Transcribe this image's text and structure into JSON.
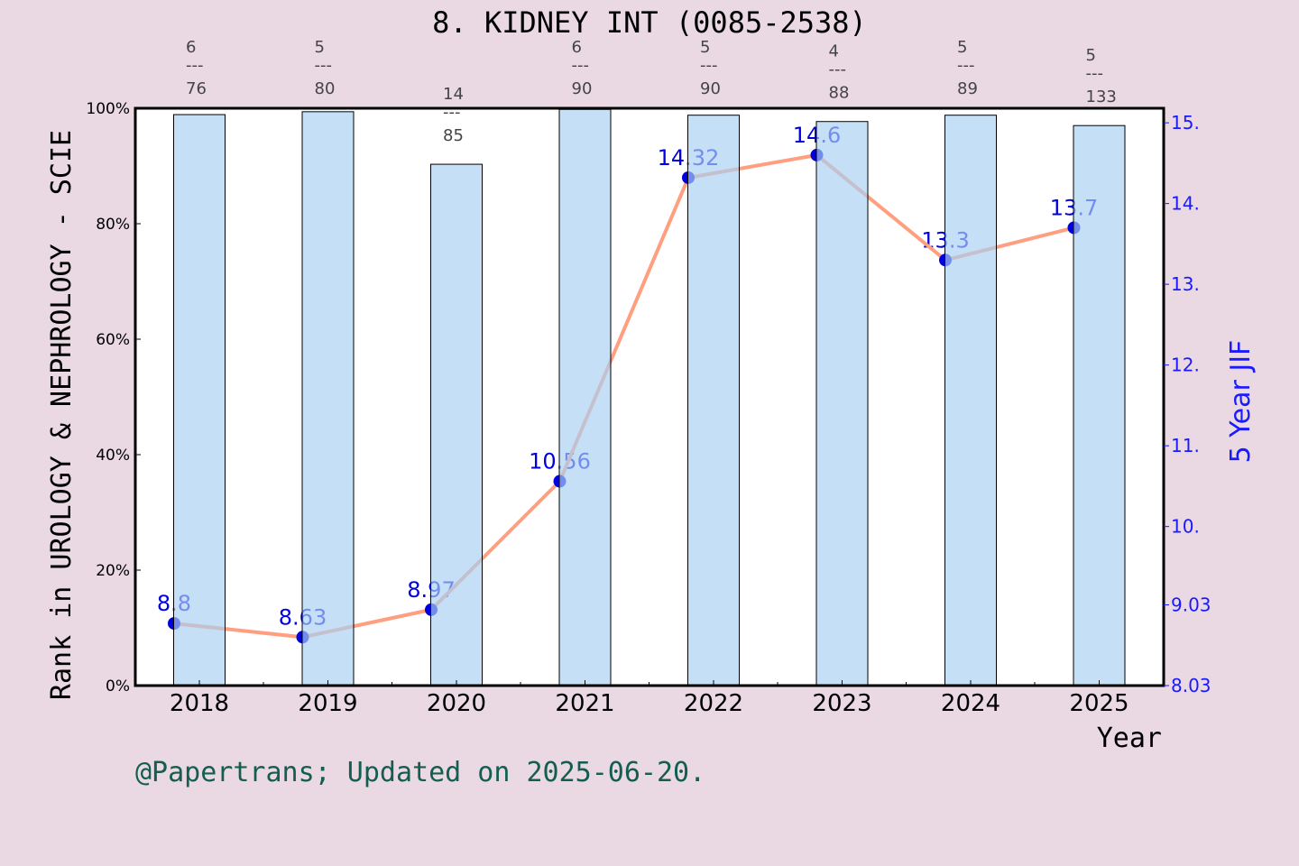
{
  "chart_data": {
    "type": "bar+line",
    "title": "8. KIDNEY INT (0085-2538)",
    "xlabel": "Year",
    "ylabel_left": "Rank in UROLOGY & NEPHROLOGY - SCIE",
    "ylabel_right": "5 Year JIF",
    "categories": [
      "2018",
      "2019",
      "2020",
      "2021",
      "2022",
      "2023",
      "2024",
      "2025"
    ],
    "bars": {
      "values_percent": [
        98.9,
        99.4,
        90.3,
        99.8,
        98.8,
        97.7,
        98.8,
        97.0
      ],
      "rank": [
        "6",
        "5",
        "14",
        "6",
        "5",
        "4",
        "5",
        "5"
      ],
      "total": [
        "76",
        "80",
        "85",
        "90",
        "90",
        "88",
        "89",
        "133"
      ],
      "separator": "---",
      "color": "#c5e0f7"
    },
    "line": {
      "values": [
        8.8,
        8.63,
        8.97,
        10.56,
        14.32,
        14.6,
        13.3,
        13.7
      ],
      "labels": [
        "8.8",
        "8.63",
        "8.97",
        "10.56",
        "14.32",
        "14.6",
        "13.3",
        "13.7"
      ],
      "color": "#ff9f7f",
      "marker_color": "#0000dd"
    },
    "ylim_left": [
      0,
      100
    ],
    "yticks_left": [
      "0%",
      "20%",
      "40%",
      "60%",
      "80%",
      "100%"
    ],
    "ylim_right": [
      8.03,
      15.18
    ],
    "yticks_right": [
      {
        "value": 8.03,
        "label": "8.03"
      },
      {
        "value": 9.03,
        "label": "9.03"
      },
      {
        "value": 10,
        "label": "10."
      },
      {
        "value": 11,
        "label": "11."
      },
      {
        "value": 12,
        "label": "12."
      },
      {
        "value": 13,
        "label": "13."
      },
      {
        "value": 14,
        "label": "14."
      },
      {
        "value": 15,
        "label": "15."
      }
    ],
    "grid": false
  },
  "footer": "@Papertrans; Updated on 2025-06-20."
}
